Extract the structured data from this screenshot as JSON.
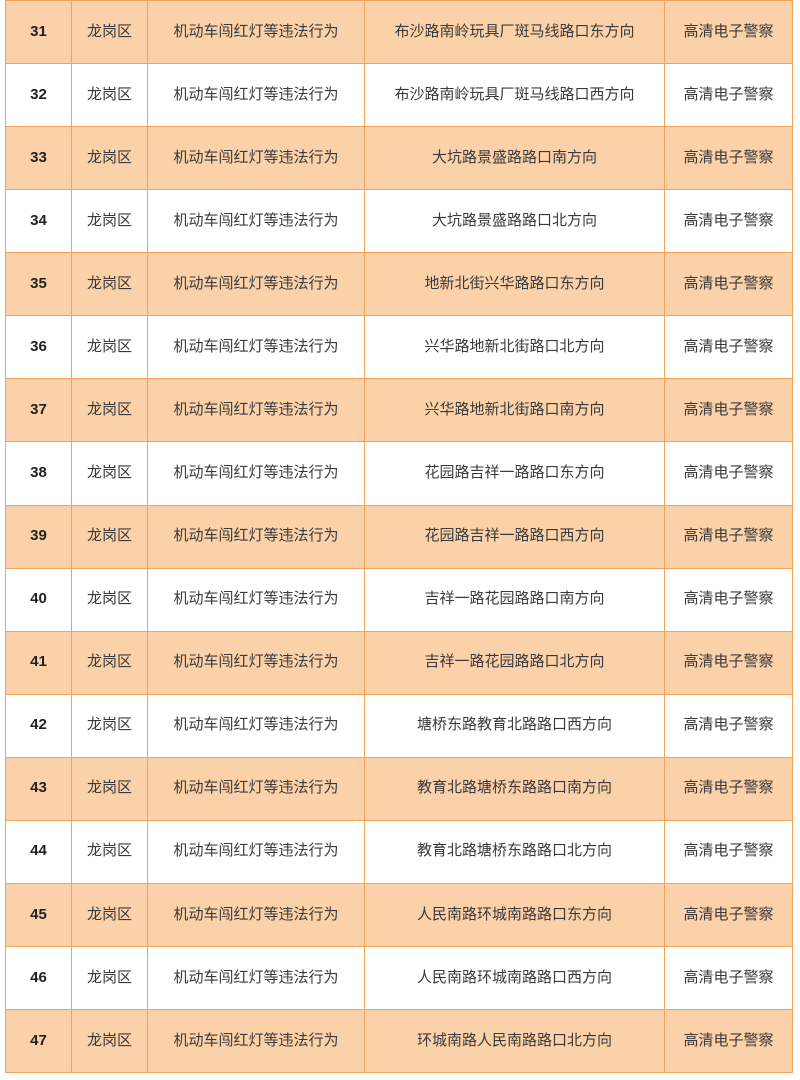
{
  "colors": {
    "row_shaded_fill": "#FBD1A9",
    "table_border": "#F1A35B",
    "text": "#3A3A3A"
  },
  "table": {
    "rows": [
      {
        "no": "31",
        "district": "龙岗区",
        "violation": "机动车闯红灯等违法行为",
        "location": "布沙路南岭玩具厂斑马线路口东方向",
        "device": "高清电子警察",
        "shaded": true
      },
      {
        "no": "32",
        "district": "龙岗区",
        "violation": "机动车闯红灯等违法行为",
        "location": "布沙路南岭玩具厂斑马线路口西方向",
        "device": "高清电子警察",
        "shaded": false
      },
      {
        "no": "33",
        "district": "龙岗区",
        "violation": "机动车闯红灯等违法行为",
        "location": "大坑路景盛路路口南方向",
        "device": "高清电子警察",
        "shaded": true
      },
      {
        "no": "34",
        "district": "龙岗区",
        "violation": "机动车闯红灯等违法行为",
        "location": "大坑路景盛路路口北方向",
        "device": "高清电子警察",
        "shaded": false
      },
      {
        "no": "35",
        "district": "龙岗区",
        "violation": "机动车闯红灯等违法行为",
        "location": "地新北街兴华路路口东方向",
        "device": "高清电子警察",
        "shaded": true
      },
      {
        "no": "36",
        "district": "龙岗区",
        "violation": "机动车闯红灯等违法行为",
        "location": "兴华路地新北街路口北方向",
        "device": "高清电子警察",
        "shaded": false
      },
      {
        "no": "37",
        "district": "龙岗区",
        "violation": "机动车闯红灯等违法行为",
        "location": "兴华路地新北街路口南方向",
        "device": "高清电子警察",
        "shaded": true
      },
      {
        "no": "38",
        "district": "龙岗区",
        "violation": "机动车闯红灯等违法行为",
        "location": "花园路吉祥一路路口东方向",
        "device": "高清电子警察",
        "shaded": false
      },
      {
        "no": "39",
        "district": "龙岗区",
        "violation": "机动车闯红灯等违法行为",
        "location": "花园路吉祥一路路口西方向",
        "device": "高清电子警察",
        "shaded": true
      },
      {
        "no": "40",
        "district": "龙岗区",
        "violation": "机动车闯红灯等违法行为",
        "location": "吉祥一路花园路路口南方向",
        "device": "高清电子警察",
        "shaded": false
      },
      {
        "no": "41",
        "district": "龙岗区",
        "violation": "机动车闯红灯等违法行为",
        "location": "吉祥一路花园路路口北方向",
        "device": "高清电子警察",
        "shaded": true
      },
      {
        "no": "42",
        "district": "龙岗区",
        "violation": "机动车闯红灯等违法行为",
        "location": "塘桥东路教育北路路口西方向",
        "device": "高清电子警察",
        "shaded": false
      },
      {
        "no": "43",
        "district": "龙岗区",
        "violation": "机动车闯红灯等违法行为",
        "location": "教育北路塘桥东路路口南方向",
        "device": "高清电子警察",
        "shaded": true
      },
      {
        "no": "44",
        "district": "龙岗区",
        "violation": "机动车闯红灯等违法行为",
        "location": "教育北路塘桥东路路口北方向",
        "device": "高清电子警察",
        "shaded": false
      },
      {
        "no": "45",
        "district": "龙岗区",
        "violation": "机动车闯红灯等违法行为",
        "location": "人民南路环城南路路口东方向",
        "device": "高清电子警察",
        "shaded": true
      },
      {
        "no": "46",
        "district": "龙岗区",
        "violation": "机动车闯红灯等违法行为",
        "location": "人民南路环城南路路口西方向",
        "device": "高清电子警察",
        "shaded": false
      },
      {
        "no": "47",
        "district": "龙岗区",
        "violation": "机动车闯红灯等违法行为",
        "location": "环城南路人民南路路口北方向",
        "device": "高清电子警察",
        "shaded": true
      }
    ]
  }
}
